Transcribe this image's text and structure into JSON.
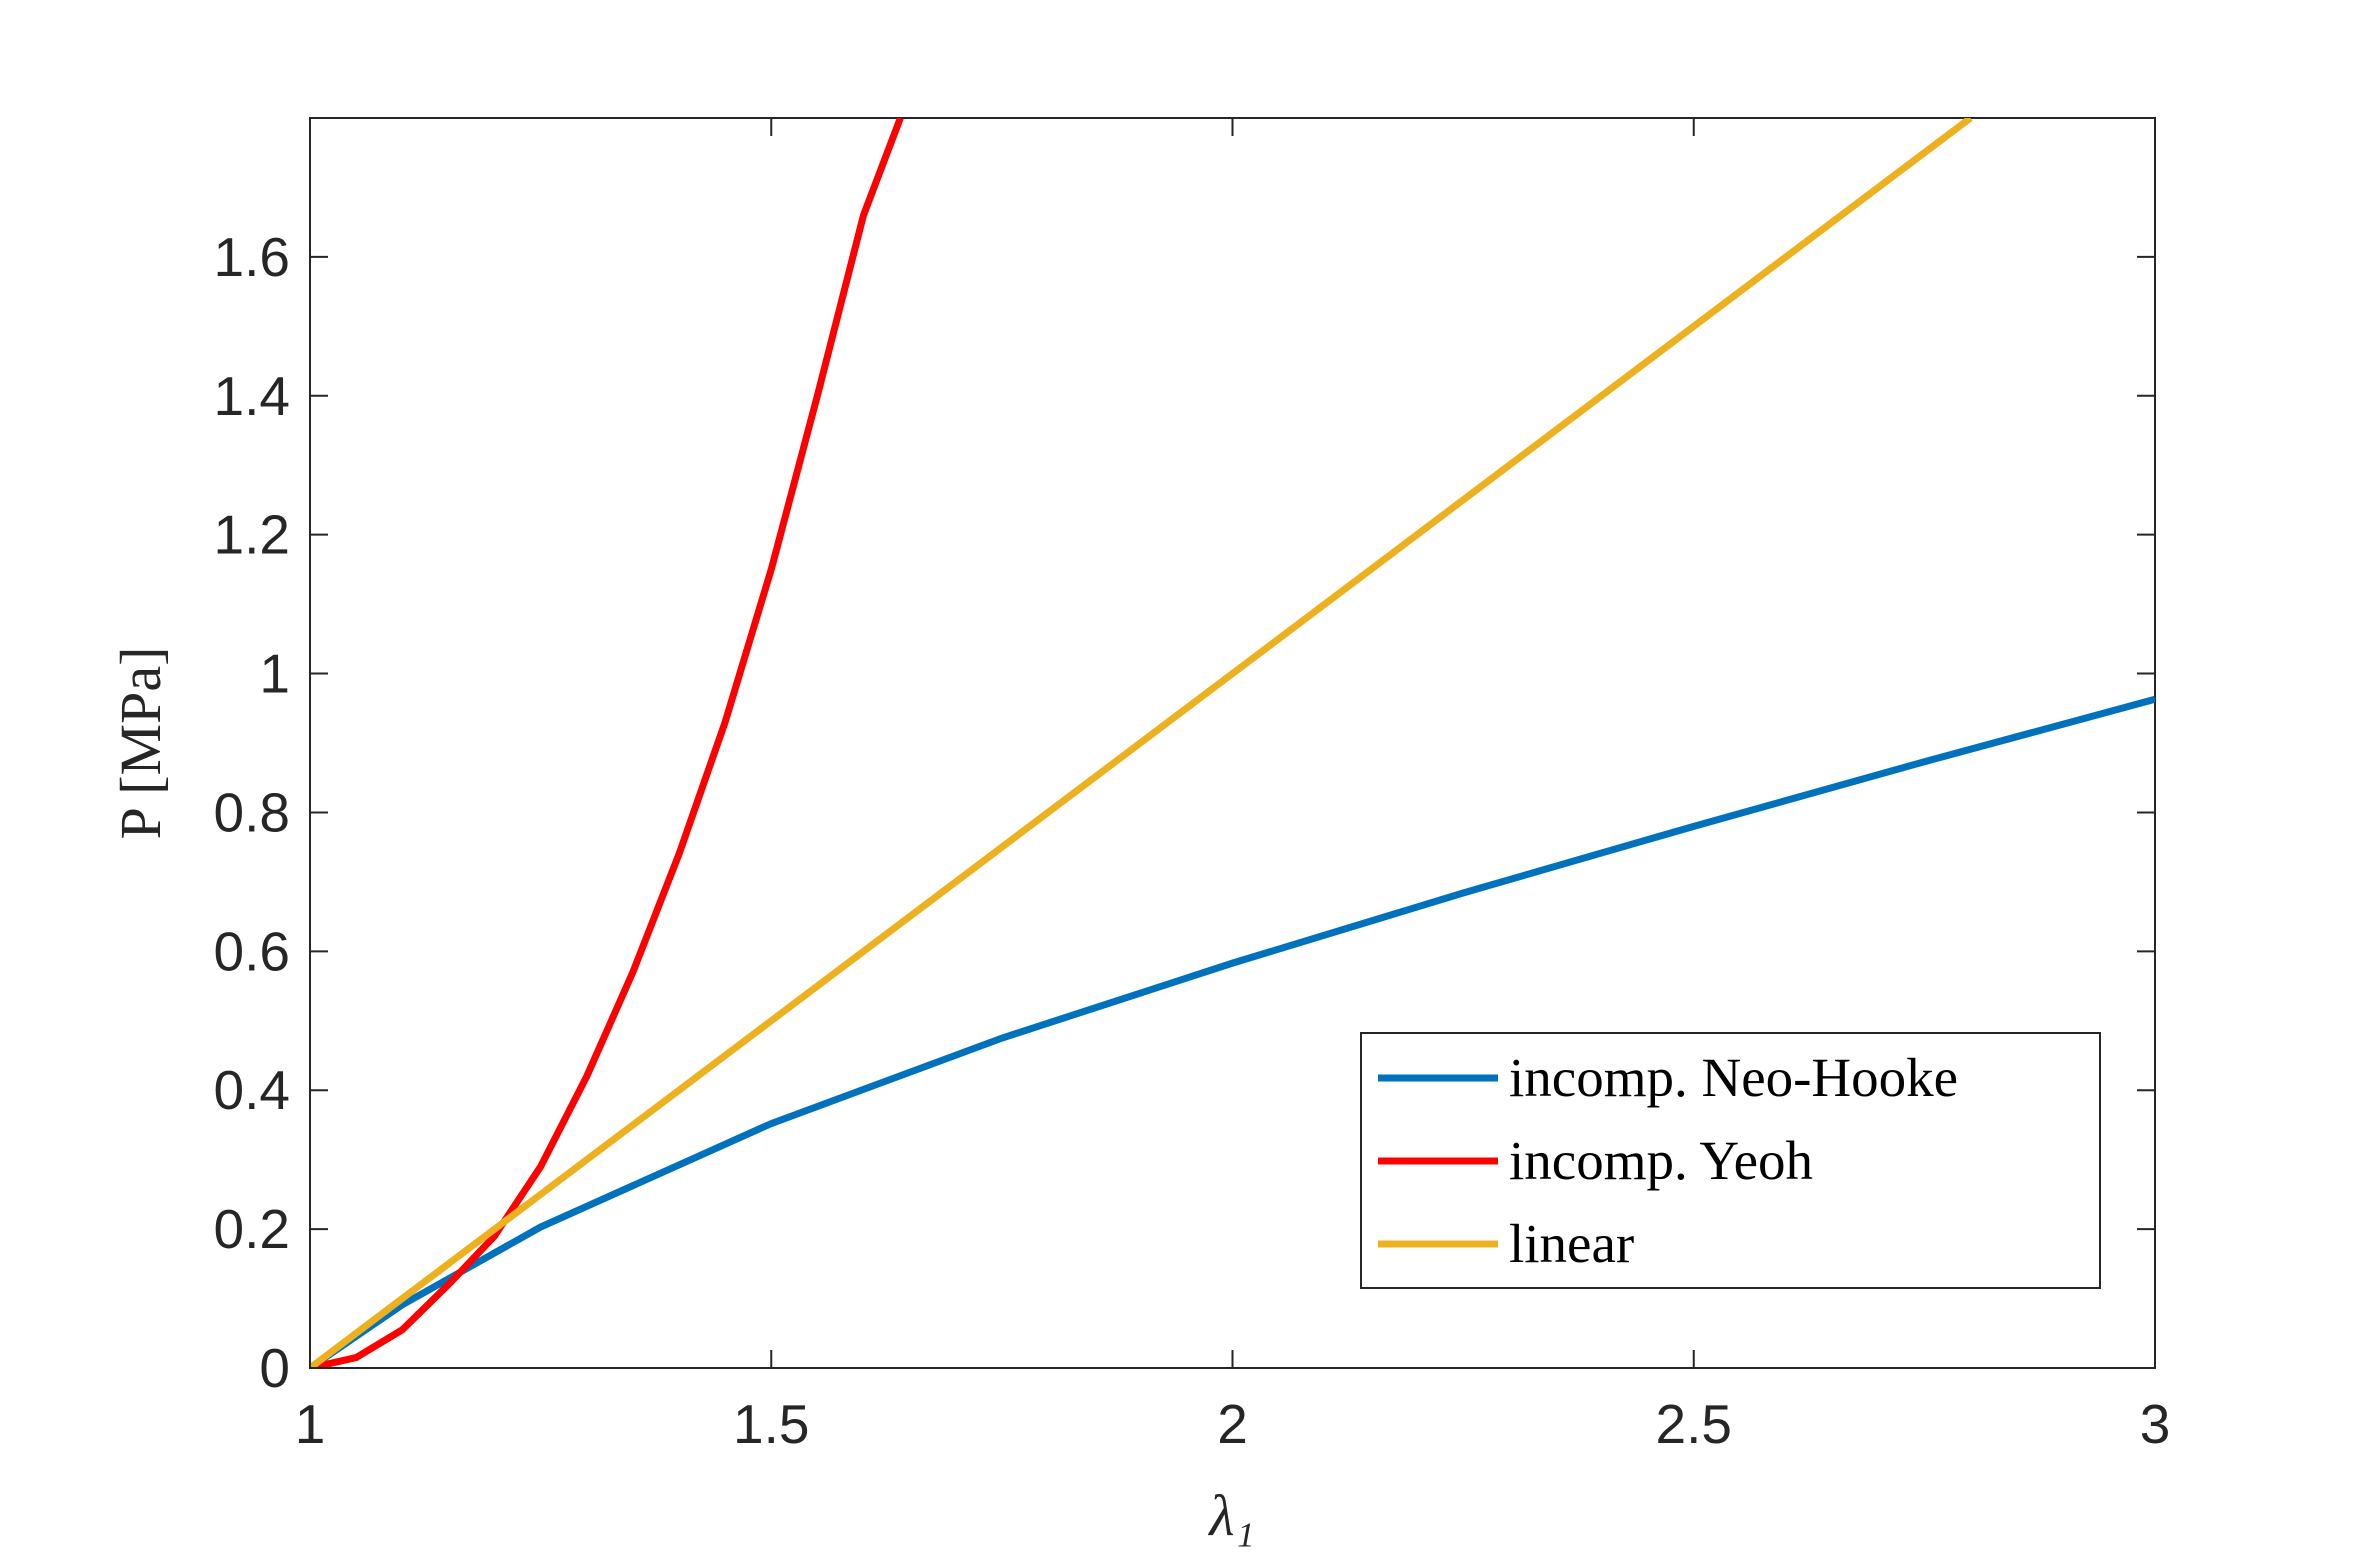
{
  "chart_data": {
    "type": "line",
    "xlabel": "λ₁",
    "ylabel": "P [MPa]",
    "xlim": [
      1,
      3
    ],
    "ylim": [
      0,
      1.8
    ],
    "xticks": [
      1,
      1.5,
      2,
      2.5,
      3
    ],
    "yticks": [
      0,
      0.2,
      0.4,
      0.6,
      0.8,
      1,
      1.2,
      1.4,
      1.6
    ],
    "legend": "lower right",
    "series": [
      {
        "name": "incomp. Neo-Hooke",
        "color": "#0072bd",
        "x": [
          1,
          1.1,
          1.25,
          1.5,
          1.75,
          2,
          2.25,
          2.5,
          2.75,
          3
        ],
        "values": [
          0,
          0.091,
          0.203,
          0.352,
          0.475,
          0.583,
          0.684,
          0.78,
          0.873,
          0.963
        ]
      },
      {
        "name": "incomp. Yeoh",
        "color": "#ff0000",
        "x": [
          1,
          1.05,
          1.1,
          1.15,
          1.2,
          1.25,
          1.3,
          1.35,
          1.4,
          1.45,
          1.5,
          1.55,
          1.6,
          1.64
        ],
        "values": [
          0,
          0.015,
          0.055,
          0.12,
          0.19,
          0.29,
          0.42,
          0.57,
          0.74,
          0.93,
          1.15,
          1.4,
          1.66,
          1.8
        ]
      },
      {
        "name": "linear",
        "color": "#edb120",
        "x": [
          1,
          2.8
        ],
        "values": [
          0,
          1.8
        ]
      }
    ]
  }
}
